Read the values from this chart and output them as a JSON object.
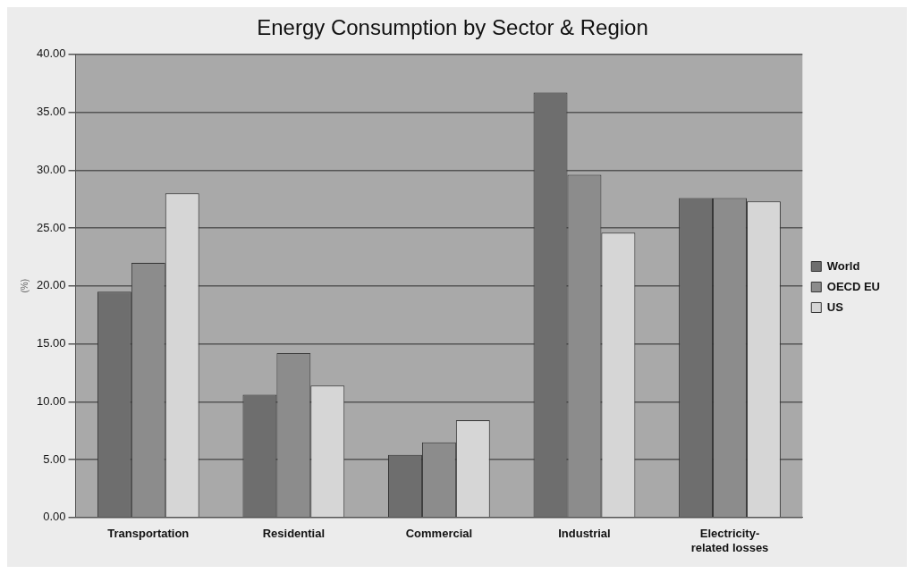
{
  "chart_data": {
    "type": "bar",
    "title": "Energy Consumption by Sector & Region",
    "ylabel": "(%)",
    "categories": [
      "Transportation",
      "Residential",
      "Commercial",
      "Industrial",
      "Electricity-related losses"
    ],
    "series": [
      {
        "name": "World",
        "color": "#6e6e6e",
        "values": [
          19.5,
          10.6,
          5.4,
          36.7,
          27.6
        ]
      },
      {
        "name": "OECD EU",
        "color": "#8c8c8c",
        "values": [
          22.0,
          14.2,
          6.5,
          29.6,
          27.6
        ]
      },
      {
        "name": "US",
        "color": "#d6d6d6",
        "values": [
          28.0,
          11.4,
          8.4,
          24.6,
          27.3
        ]
      }
    ],
    "ylim": [
      0,
      40
    ],
    "yticks": [
      {
        "value": 0,
        "label": "0.00"
      },
      {
        "value": 5,
        "label": "5.00"
      },
      {
        "value": 10,
        "label": "10.00"
      },
      {
        "value": 15,
        "label": "15.00"
      },
      {
        "value": 20,
        "label": "20.00"
      },
      {
        "value": 25,
        "label": "25.00"
      },
      {
        "value": 30,
        "label": "30.00"
      },
      {
        "value": 35,
        "label": "35.00"
      },
      {
        "value": 40,
        "label": "40.00"
      }
    ],
    "grid": "y",
    "legend": "right"
  }
}
